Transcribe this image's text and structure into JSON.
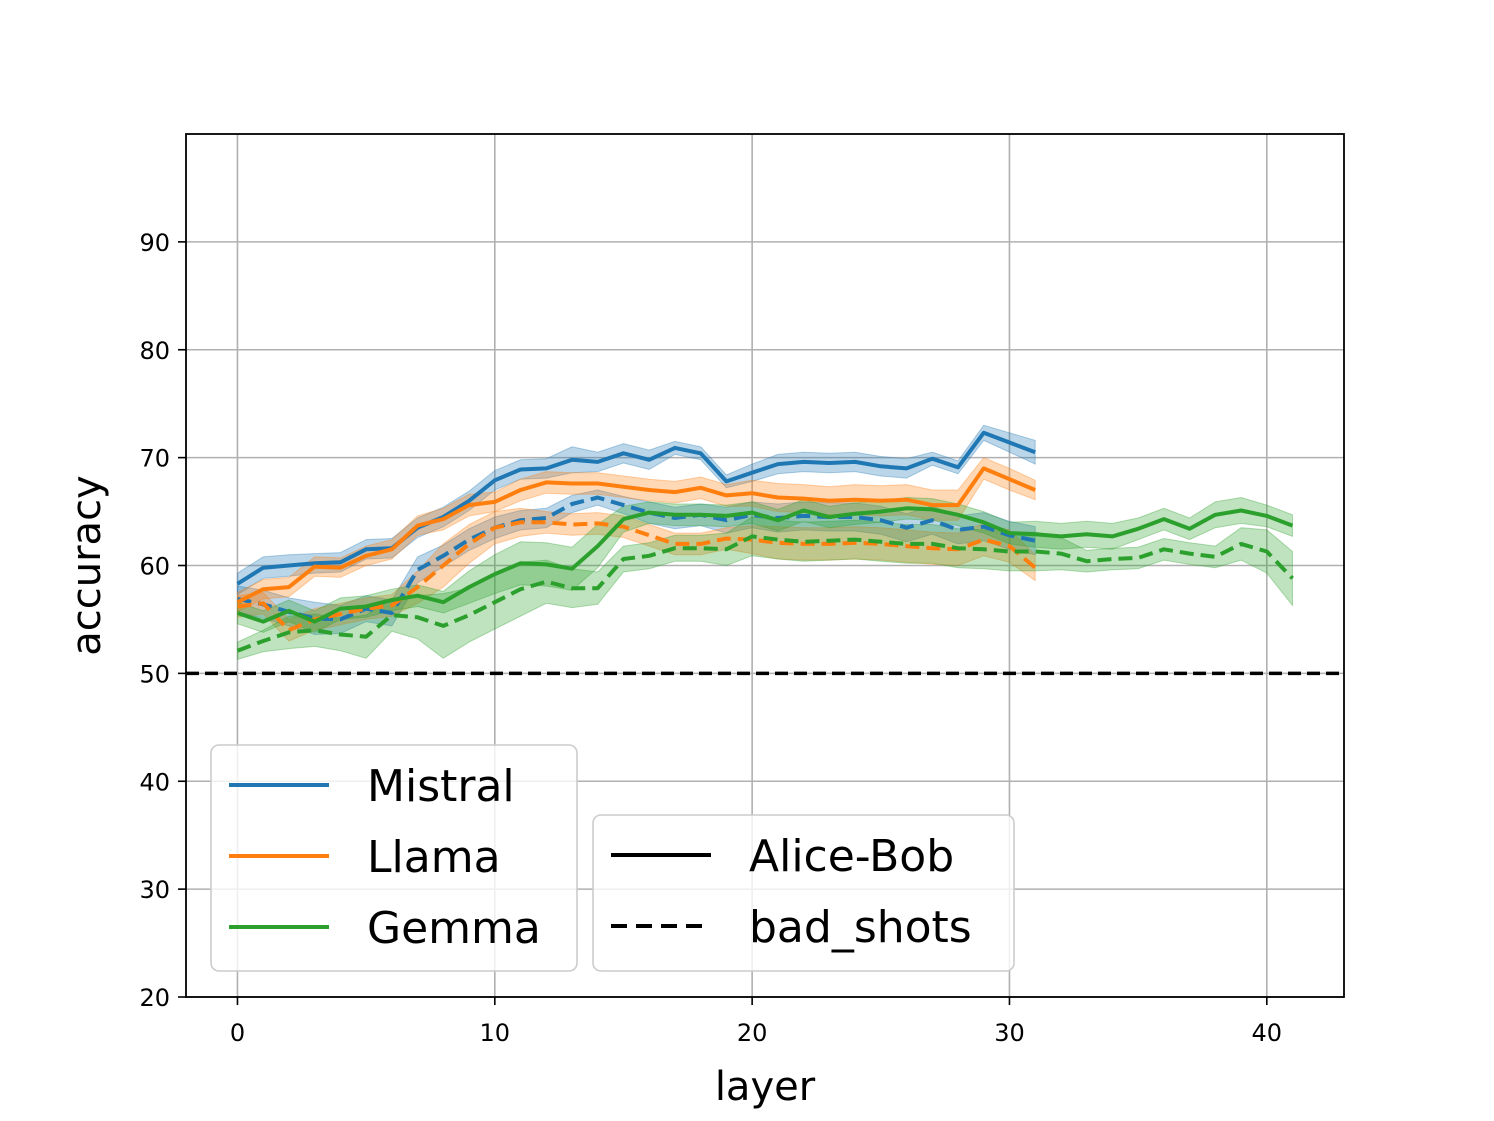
{
  "chart_data": {
    "type": "line",
    "title": "",
    "xlabel": "layer",
    "ylabel": "accuracy",
    "xlim": [
      -2,
      43
    ],
    "ylim": [
      20,
      100
    ],
    "xticks": [
      0,
      10,
      20,
      30,
      40
    ],
    "yticks": [
      20,
      30,
      40,
      50,
      60,
      70,
      80,
      90
    ],
    "grid": true,
    "reference_line": {
      "y": 50,
      "style": "dashed",
      "color": "#000000"
    },
    "colors": {
      "Mistral": "#1f77b4",
      "Llama": "#ff7f0e",
      "Gemma": "#2ca02c"
    },
    "legend_models": {
      "placement": "lower-left",
      "entries": [
        "Mistral",
        "Llama",
        "Gemma"
      ]
    },
    "legend_styles": {
      "placement": "lower-center",
      "entries": [
        {
          "label": "Alice-Bob",
          "style": "solid"
        },
        {
          "label": "bad_shots",
          "style": "dashed"
        }
      ]
    },
    "series": [
      {
        "model": "Mistral",
        "style": "solid",
        "values": [
          58.3,
          59.8,
          60.0,
          60.2,
          60.3,
          61.5,
          61.6,
          63.5,
          64.5,
          66.0,
          67.9,
          68.9,
          69.0,
          69.8,
          69.6,
          70.4,
          69.8,
          70.9,
          70.4,
          67.8,
          68.6,
          69.4,
          69.6,
          69.5,
          69.6,
          69.2,
          69.0,
          69.9,
          69.1,
          72.3,
          71.4,
          70.5
        ],
        "err": [
          1.0,
          1.0,
          1.0,
          0.9,
          0.9,
          0.9,
          0.9,
          0.9,
          0.9,
          0.9,
          0.9,
          0.9,
          0.9,
          1.2,
          0.9,
          0.9,
          0.9,
          0.6,
          0.6,
          0.6,
          0.8,
          0.9,
          0.9,
          0.9,
          0.9,
          0.9,
          0.9,
          0.6,
          0.6,
          0.7,
          0.9,
          1.1
        ]
      },
      {
        "model": "Mistral",
        "style": "dashed",
        "values": [
          56.9,
          56.4,
          55.7,
          55.1,
          55.0,
          56.0,
          55.6,
          59.6,
          60.9,
          62.4,
          63.5,
          64.2,
          64.4,
          65.7,
          66.3,
          65.6,
          64.9,
          64.4,
          64.7,
          64.2,
          64.7,
          64.4,
          64.6,
          64.5,
          64.5,
          64.2,
          63.5,
          64.2,
          63.3,
          63.6,
          62.8,
          62.3
        ],
        "err": [
          1.2,
          1.3,
          1.3,
          1.5,
          1.3,
          1.2,
          1.2,
          1.2,
          1.0,
          1.0,
          1.0,
          0.9,
          0.9,
          0.8,
          0.7,
          0.8,
          1.0,
          1.0,
          1.0,
          1.2,
          1.2,
          1.3,
          1.3,
          1.3,
          1.3,
          1.3,
          1.3,
          1.3,
          1.3,
          1.3,
          1.3,
          1.3
        ]
      },
      {
        "model": "Llama",
        "style": "solid",
        "values": [
          56.6,
          57.8,
          58.0,
          59.9,
          59.8,
          60.9,
          61.5,
          63.7,
          64.3,
          65.6,
          65.9,
          67.0,
          67.7,
          67.6,
          67.6,
          67.3,
          67.0,
          66.8,
          67.2,
          66.5,
          66.7,
          66.3,
          66.2,
          66.0,
          66.1,
          66.0,
          66.1,
          65.6,
          65.6,
          69.0,
          68.0,
          67.0
        ],
        "err": [
          0.9,
          0.9,
          0.9,
          0.9,
          0.9,
          0.9,
          0.9,
          0.9,
          1.0,
          1.0,
          0.9,
          1.0,
          1.0,
          1.0,
          1.0,
          1.0,
          1.0,
          1.0,
          1.0,
          1.0,
          1.2,
          1.3,
          1.3,
          1.3,
          1.4,
          1.4,
          1.4,
          1.4,
          1.4,
          1.0,
          1.0,
          0.9
        ]
      },
      {
        "model": "Llama",
        "style": "dashed",
        "values": [
          56.2,
          56.5,
          54.0,
          55.0,
          55.5,
          56.0,
          56.3,
          58.0,
          60.0,
          62.0,
          63.5,
          64.0,
          64.0,
          63.8,
          63.9,
          63.6,
          62.8,
          62.0,
          62.0,
          62.5,
          62.4,
          62.1,
          62.0,
          62.0,
          62.1,
          62.0,
          61.8,
          61.6,
          61.5,
          62.4,
          61.8,
          59.8
        ],
        "err": [
          1.0,
          1.0,
          1.0,
          1.0,
          1.0,
          1.0,
          1.0,
          1.5,
          2.0,
          1.8,
          1.5,
          1.3,
          1.0,
          1.0,
          1.0,
          1.0,
          1.0,
          1.0,
          1.0,
          1.0,
          1.3,
          1.5,
          1.5,
          1.5,
          1.5,
          1.5,
          1.5,
          1.5,
          1.5,
          1.5,
          1.5,
          1.2
        ]
      },
      {
        "model": "Gemma",
        "style": "solid",
        "values": [
          55.6,
          54.8,
          55.8,
          54.8,
          56.0,
          56.2,
          56.8,
          57.2,
          56.6,
          58.0,
          59.2,
          60.2,
          60.1,
          59.7,
          61.8,
          64.3,
          64.9,
          64.7,
          64.7,
          64.6,
          64.9,
          64.2,
          65.1,
          64.5,
          64.8,
          65.0,
          65.3,
          65.2,
          64.7,
          64.0,
          63.0,
          62.9,
          62.7,
          62.9,
          62.7,
          63.4,
          64.3,
          63.4,
          64.7,
          65.1,
          64.6,
          63.7
        ],
        "err": [
          1.0,
          1.0,
          1.0,
          1.0,
          1.0,
          1.0,
          1.0,
          1.0,
          1.0,
          1.5,
          1.8,
          2.0,
          2.0,
          2.0,
          2.0,
          1.2,
          1.0,
          1.0,
          1.0,
          1.0,
          1.0,
          1.0,
          1.0,
          1.0,
          1.0,
          1.0,
          1.0,
          1.0,
          1.0,
          1.0,
          1.0,
          1.2,
          1.2,
          1.2,
          1.2,
          1.0,
          1.0,
          1.0,
          1.2,
          1.2,
          1.0,
          1.0
        ]
      },
      {
        "model": "Gemma",
        "style": "dashed",
        "values": [
          52.1,
          53.0,
          53.8,
          54.0,
          53.6,
          53.4,
          55.4,
          55.2,
          54.4,
          55.4,
          56.6,
          57.8,
          58.5,
          57.9,
          57.9,
          60.6,
          60.9,
          61.6,
          61.6,
          61.5,
          62.7,
          62.4,
          62.2,
          62.3,
          62.4,
          62.2,
          62.0,
          62.0,
          61.6,
          61.5,
          61.3,
          61.3,
          61.1,
          60.4,
          60.6,
          60.7,
          61.5,
          61.1,
          60.8,
          62.0,
          61.3,
          58.8
        ],
        "err": [
          0.8,
          1.0,
          1.5,
          1.5,
          1.5,
          2.0,
          1.5,
          2.0,
          3.0,
          2.5,
          2.5,
          2.5,
          2.0,
          1.8,
          1.5,
          1.2,
          1.2,
          1.2,
          1.2,
          1.5,
          1.8,
          1.8,
          1.8,
          1.8,
          1.8,
          1.8,
          1.8,
          1.8,
          1.8,
          1.8,
          1.8,
          1.8,
          1.5,
          1.0,
          1.0,
          1.0,
          1.0,
          1.0,
          1.0,
          1.5,
          2.0,
          2.5
        ]
      }
    ]
  }
}
